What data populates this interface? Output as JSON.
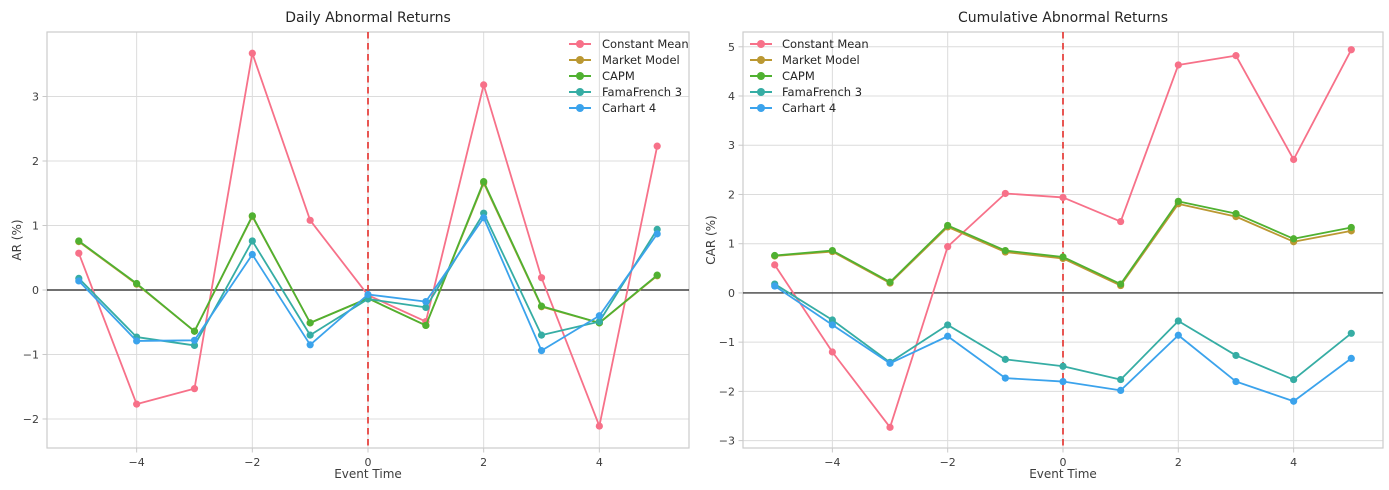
{
  "style": {
    "background": "#ffffff",
    "grid_color": "#dcdcdc",
    "spine_color": "#cccccc",
    "tick_mark_color": "#c9c9c9",
    "tick_text_color": "#3d3d3d",
    "title_color": "#262626",
    "zero_line_color": "#1a1a1a",
    "event_line_color": "#e53935"
  },
  "chart_data": [
    {
      "type": "line",
      "title": "Daily Abnormal Returns",
      "xlabel": "Event Time",
      "ylabel": "AR (%)",
      "x": [
        -5,
        -4,
        -3,
        -2,
        -1,
        0,
        1,
        2,
        3,
        4,
        5
      ],
      "xticks": [
        -4,
        -2,
        0,
        2,
        4
      ],
      "yticks": [
        -2,
        -1,
        0,
        1,
        2,
        3
      ],
      "xlim": [
        -5.55,
        5.55
      ],
      "ylim": [
        -2.45,
        4.0
      ],
      "grid": true,
      "zero_line_y": 0,
      "event_line_x": 0,
      "legend_position": "upper-right",
      "series": [
        {
          "name": "Constant Mean",
          "color": "#f77189",
          "values": [
            0.57,
            -1.77,
            -1.53,
            3.67,
            1.08,
            -0.08,
            -0.49,
            3.18,
            0.19,
            -2.11,
            2.23
          ]
        },
        {
          "name": "Market Model",
          "color": "#bb9832",
          "values": [
            0.75,
            0.09,
            -0.64,
            1.14,
            -0.51,
            -0.13,
            -0.55,
            1.66,
            -0.26,
            -0.51,
            0.22
          ]
        },
        {
          "name": "CAPM",
          "color": "#50b131",
          "values": [
            0.76,
            0.1,
            -0.64,
            1.15,
            -0.51,
            -0.13,
            -0.55,
            1.68,
            -0.25,
            -0.51,
            0.23
          ]
        },
        {
          "name": "FamaFrench 3",
          "color": "#36ada4",
          "values": [
            0.18,
            -0.73,
            -0.86,
            0.76,
            -0.7,
            -0.14,
            -0.27,
            1.19,
            -0.7,
            -0.49,
            0.94
          ]
        },
        {
          "name": "Carhart 4",
          "color": "#3ba3ec",
          "values": [
            0.14,
            -0.79,
            -0.78,
            0.55,
            -0.85,
            -0.07,
            -0.18,
            1.12,
            -0.94,
            -0.4,
            0.87
          ]
        }
      ]
    },
    {
      "type": "line",
      "title": "Cumulative Abnormal Returns",
      "xlabel": "Event Time",
      "ylabel": "CAR (%)",
      "x": [
        -5,
        -4,
        -3,
        -2,
        -1,
        0,
        1,
        2,
        3,
        4,
        5
      ],
      "xticks": [
        -4,
        -2,
        0,
        2,
        4
      ],
      "yticks": [
        -3,
        -2,
        -1,
        0,
        1,
        2,
        3,
        4,
        5
      ],
      "xlim": [
        -5.55,
        5.55
      ],
      "ylim": [
        -3.15,
        5.3
      ],
      "grid": true,
      "zero_line_y": 0,
      "event_line_x": 0,
      "legend_position": "upper-left",
      "series": [
        {
          "name": "Constant Mean",
          "color": "#f77189",
          "values": [
            0.57,
            -1.2,
            -2.73,
            0.94,
            2.02,
            1.94,
            1.45,
            4.63,
            4.82,
            2.71,
            4.94
          ]
        },
        {
          "name": "Market Model",
          "color": "#bb9832",
          "values": [
            0.75,
            0.84,
            0.2,
            1.34,
            0.83,
            0.7,
            0.15,
            1.81,
            1.55,
            1.04,
            1.26
          ]
        },
        {
          "name": "CAPM",
          "color": "#50b131",
          "values": [
            0.76,
            0.86,
            0.22,
            1.37,
            0.86,
            0.73,
            0.18,
            1.86,
            1.61,
            1.1,
            1.33
          ]
        },
        {
          "name": "FamaFrench 3",
          "color": "#36ada4",
          "values": [
            0.18,
            -0.55,
            -1.41,
            -0.65,
            -1.35,
            -1.49,
            -1.76,
            -0.57,
            -1.27,
            -1.76,
            -0.82
          ]
        },
        {
          "name": "Carhart 4",
          "color": "#3ba3ec",
          "values": [
            0.14,
            -0.65,
            -1.43,
            -0.88,
            -1.73,
            -1.8,
            -1.98,
            -0.86,
            -1.8,
            -2.2,
            -1.33
          ]
        }
      ]
    }
  ]
}
